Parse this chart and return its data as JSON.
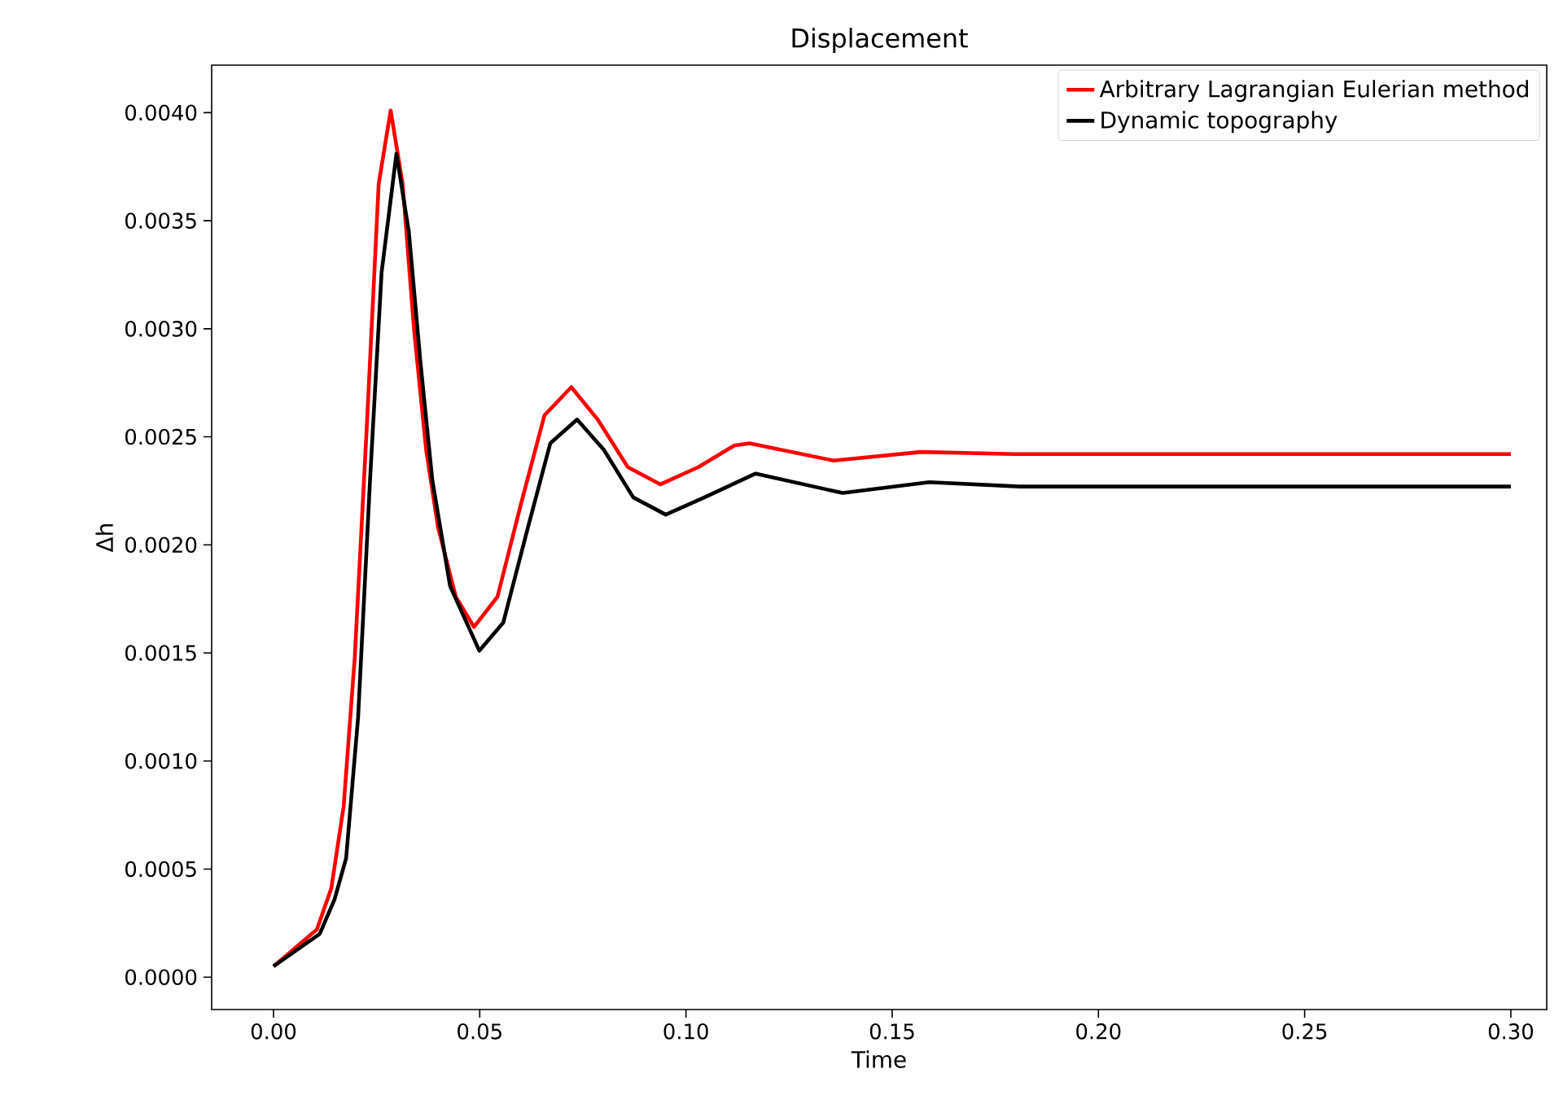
{
  "chart_data": {
    "type": "line",
    "title": "Displacement",
    "xlabel": "Time",
    "ylabel": "Δh",
    "legend": "top right",
    "marker": "none",
    "line_style": "solid",
    "xlim": [
      -0.015,
      0.3087
    ],
    "ylim": [
      -0.00015,
      0.00422
    ],
    "xticks": [
      {
        "value": 0,
        "label": "0.00"
      },
      {
        "value": 0.05,
        "label": "0.05"
      },
      {
        "value": 0.1,
        "label": "0.10"
      },
      {
        "value": 0.15,
        "label": "0.15"
      },
      {
        "value": 0.2,
        "label": "0.20"
      },
      {
        "value": 0.25,
        "label": "0.25"
      },
      {
        "value": 0.3,
        "label": "0.30"
      }
    ],
    "yticks": [
      {
        "value": 0,
        "label": "0.0000"
      },
      {
        "value": 0.0005,
        "label": "0.0005"
      },
      {
        "value": 0.001,
        "label": "0.0010"
      },
      {
        "value": 0.0015,
        "label": "0.0015"
      },
      {
        "value": 0.002,
        "label": "0.0020"
      },
      {
        "value": 0.0025,
        "label": "0.0025"
      },
      {
        "value": 0.003,
        "label": "0.0030"
      },
      {
        "value": 0.0035,
        "label": "0.0035"
      },
      {
        "value": 0.004,
        "label": "0.0040"
      }
    ],
    "series": [
      {
        "name": "Arbitrary Lagrangian Eulerian method",
        "color": "#ff0000",
        "x": [
          0,
          0.0105,
          0.014,
          0.017,
          0.0197,
          0.0227,
          0.0255,
          0.0284,
          0.0313,
          0.0341,
          0.037,
          0.0399,
          0.0442,
          0.0486,
          0.0543,
          0.06,
          0.0657,
          0.0722,
          0.0786,
          0.0859,
          0.0938,
          0.103,
          0.1117,
          0.1154,
          0.1358,
          0.157,
          0.1796,
          0.2,
          0.25,
          0.3
        ],
        "values": [
          5e-05,
          0.00022,
          0.00041,
          0.00079,
          0.00148,
          0.00258,
          0.00367,
          0.00401,
          0.00367,
          0.00299,
          0.00244,
          0.00208,
          0.00176,
          0.00162,
          0.00176,
          0.00219,
          0.0026,
          0.00273,
          0.00258,
          0.00236,
          0.00228,
          0.00236,
          0.00246,
          0.00247,
          0.00239,
          0.00243,
          0.00242,
          0.00242,
          0.00242,
          0.00242
        ]
      },
      {
        "name": "Dynamic topography",
        "color": "#000000",
        "x": [
          0,
          0.0112,
          0.0148,
          0.0176,
          0.0205,
          0.0234,
          0.0262,
          0.0298,
          0.0328,
          0.0356,
          0.0385,
          0.0428,
          0.0499,
          0.0557,
          0.0614,
          0.0671,
          0.0736,
          0.0801,
          0.0872,
          0.0951,
          0.1045,
          0.1169,
          0.138,
          0.159,
          0.181,
          0.2,
          0.25,
          0.3
        ],
        "values": [
          5e-05,
          0.0002,
          0.00036,
          0.00055,
          0.0012,
          0.0023,
          0.00326,
          0.00381,
          0.00345,
          0.00285,
          0.0023,
          0.00181,
          0.00151,
          0.00164,
          0.00206,
          0.00247,
          0.00258,
          0.00244,
          0.00222,
          0.00214,
          0.00222,
          0.00233,
          0.00224,
          0.00229,
          0.00227,
          0.00227,
          0.00227,
          0.00227
        ]
      }
    ]
  }
}
